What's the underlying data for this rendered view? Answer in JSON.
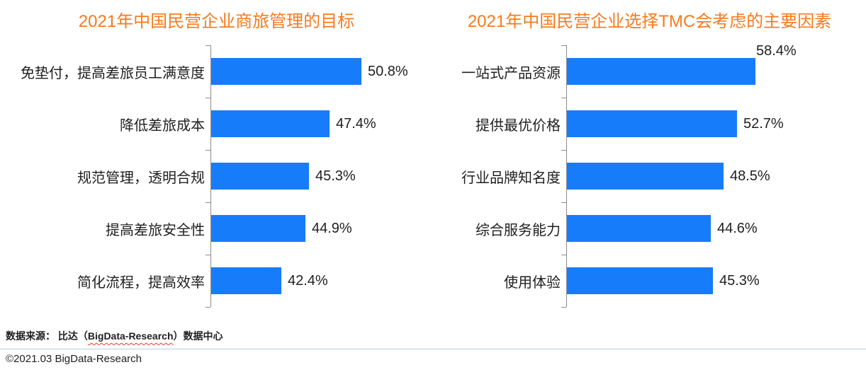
{
  "colors": {
    "title": "#F87A1E",
    "bar": "#177CFA",
    "axis": "#8C8C8C",
    "text": "#1F1F1F",
    "divider": "#B9CDE5",
    "squiggle": "#E53E2E"
  },
  "chart_data": [
    {
      "type": "bar",
      "orientation": "horizontal",
      "title": "2021年中国民营企业商旅管理的目标",
      "categories": [
        "免垫付，提高差旅员工满意度",
        "降低差旅成本",
        "规范管理，透明合规",
        "提高差旅安全性",
        "简化流程，提高效率"
      ],
      "values": [
        50.8,
        47.4,
        45.3,
        44.9,
        42.4
      ],
      "value_labels": [
        "50.8%",
        "47.4%",
        "45.3%",
        "44.9%",
        "42.4%"
      ],
      "xlim": [
        35,
        52.5
      ],
      "grid": false,
      "legend": "none",
      "bar_color": "#177CFA",
      "value_label_positions": [
        "right",
        "right",
        "right",
        "right",
        "right"
      ]
    },
    {
      "type": "bar",
      "orientation": "horizontal",
      "title": "2021年中国民营企业选择TMC会考虑的主要因素",
      "categories": [
        "一站式产品资源",
        "提供最优价格",
        "行业品牌知名度",
        "综合服务能力",
        "使用体验"
      ],
      "values": [
        58.4,
        52.7,
        48.5,
        44.6,
        45.3
      ],
      "value_labels": [
        "58.4%",
        "52.7%",
        "48.5%",
        "44.6%",
        "45.3%"
      ],
      "xlim": [
        0,
        65
      ],
      "grid": false,
      "legend": "none",
      "bar_color": "#177CFA",
      "value_label_positions": [
        "above",
        "right",
        "right",
        "right",
        "right"
      ]
    }
  ],
  "footer": {
    "source_prefix": "数据来源： 比达（",
    "source_brand": "BigData-Research",
    "source_suffix": "）数据中心",
    "copyright": "©2021.03 BigData-Research"
  }
}
